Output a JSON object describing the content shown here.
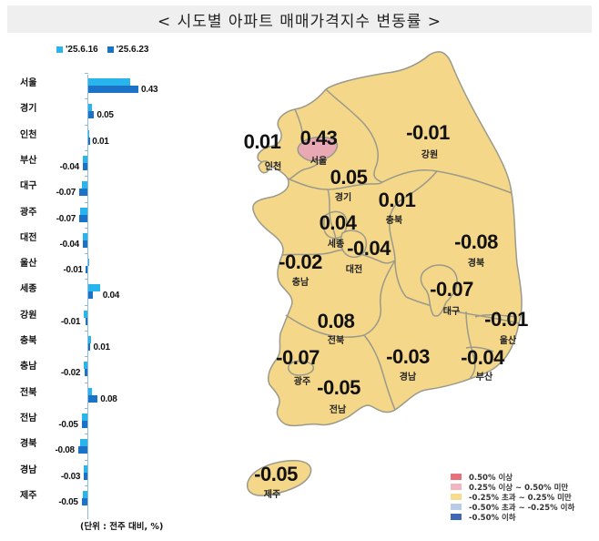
{
  "title": "< 시도별 아파트 매매가격지수 변동률 >",
  "bar_legend": [
    {
      "label": "'25.6.16",
      "color": "#28b4ec"
    },
    {
      "label": "'25.6.23",
      "color": "#1a73c6"
    }
  ],
  "unit_note": "(단위 : 전주 대비, %)",
  "regions": [
    {
      "name": "서울",
      "prev": 0.36,
      "curr": 0.43,
      "curr_label": "0.43"
    },
    {
      "name": "경기",
      "prev": 0.03,
      "curr": 0.05,
      "curr_label": "0.05"
    },
    {
      "name": "인천",
      "prev": 0.0,
      "curr": 0.01,
      "curr_label": "0.01"
    },
    {
      "name": "부산",
      "prev": -0.04,
      "curr": -0.04,
      "curr_label": "-0.04"
    },
    {
      "name": "대구",
      "prev": -0.05,
      "curr": -0.07,
      "curr_label": "-0.07"
    },
    {
      "name": "광주",
      "prev": -0.06,
      "curr": -0.07,
      "curr_label": "-0.07"
    },
    {
      "name": "대전",
      "prev": -0.04,
      "curr": -0.04,
      "curr_label": "-0.04"
    },
    {
      "name": "울산",
      "prev": 0.0,
      "curr": -0.01,
      "curr_label": "-0.01"
    },
    {
      "name": "세종",
      "prev": 0.1,
      "curr": 0.04,
      "curr_label": "0.04"
    },
    {
      "name": "강원",
      "prev": -0.03,
      "curr": -0.01,
      "curr_label": "-0.01"
    },
    {
      "name": "충북",
      "prev": 0.02,
      "curr": 0.01,
      "curr_label": "0.01"
    },
    {
      "name": "충남",
      "prev": -0.03,
      "curr": -0.02,
      "curr_label": "-0.02"
    },
    {
      "name": "전북",
      "prev": 0.03,
      "curr": 0.08,
      "curr_label": "0.08"
    },
    {
      "name": "전남",
      "prev": -0.05,
      "curr": -0.05,
      "curr_label": "-0.05"
    },
    {
      "name": "경북",
      "prev": -0.06,
      "curr": -0.08,
      "curr_label": "-0.08"
    },
    {
      "name": "경남",
      "prev": -0.03,
      "curr": -0.03,
      "curr_label": "-0.03"
    },
    {
      "name": "제주",
      "prev": -0.04,
      "curr": -0.05,
      "curr_label": "-0.05"
    }
  ],
  "map_labels": {
    "incheon": {
      "value": "0.01",
      "name": "인천"
    },
    "seoul": {
      "value": "0.43",
      "name": "서울"
    },
    "gangwon": {
      "value": "-0.01",
      "name": "강원"
    },
    "gyeonggi": {
      "value": "0.05",
      "name": "경기"
    },
    "chungbuk": {
      "value": "0.01",
      "name": "충북"
    },
    "sejong": {
      "value": "0.04",
      "name": "세종"
    },
    "daejeon": {
      "value": "-0.04",
      "name": "대전"
    },
    "chungnam": {
      "value": "-0.02",
      "name": "충남"
    },
    "gyeongbuk": {
      "value": "-0.08",
      "name": "경북"
    },
    "daegu": {
      "value": "-0.07",
      "name": "대구"
    },
    "ulsan": {
      "value": "-0.01",
      "name": "울산"
    },
    "jeonbuk": {
      "value": "0.08",
      "name": "전북"
    },
    "gwangju": {
      "value": "-0.07",
      "name": "광주"
    },
    "jeonnam": {
      "value": "-0.05",
      "name": "전남"
    },
    "gyeongnam": {
      "value": "-0.03",
      "name": "경남"
    },
    "busan": {
      "value": "-0.04",
      "name": "부산"
    },
    "jeju": {
      "value": "-0.05",
      "name": "제주"
    }
  },
  "map_legend": [
    {
      "label": "0.50% 이상",
      "color": "#e8707c"
    },
    {
      "label": "0.25% 이상 ~ 0.50% 미만",
      "color": "#f2b6c0"
    },
    {
      "label": "-0.25% 초과 ~ 0.25% 미만",
      "color": "#f7dc8e"
    },
    {
      "label": "-0.50% 초과 ~ -0.25% 이하",
      "color": "#b8cbe8"
    },
    {
      "label": "-0.50% 이하",
      "color": "#3f67b5"
    }
  ],
  "colors": {
    "land": "#f5d78a",
    "border": "#9a9a8a",
    "seoul_fill": "#e8a9b4"
  },
  "chart_data": {
    "type": "bar",
    "orientation": "horizontal",
    "title": "< 시도별 아파트 매매가격지수 변동률 >",
    "categories": [
      "서울",
      "경기",
      "인천",
      "부산",
      "대구",
      "광주",
      "대전",
      "울산",
      "세종",
      "강원",
      "충북",
      "충남",
      "전북",
      "전남",
      "경북",
      "경남",
      "제주"
    ],
    "series": [
      {
        "name": "'25.6.16",
        "values": [
          0.36,
          0.03,
          0.0,
          -0.04,
          -0.05,
          -0.06,
          -0.04,
          0.0,
          0.1,
          -0.03,
          0.02,
          -0.03,
          0.03,
          -0.05,
          -0.06,
          -0.03,
          -0.04
        ]
      },
      {
        "name": "'25.6.23",
        "values": [
          0.43,
          0.05,
          0.01,
          -0.04,
          -0.07,
          -0.07,
          -0.04,
          -0.01,
          0.04,
          -0.01,
          0.01,
          -0.02,
          0.08,
          -0.05,
          -0.08,
          -0.03,
          -0.05
        ]
      }
    ],
    "data_labels": "'25.6.23 values shown",
    "xlabel": "",
    "ylabel": "",
    "unit": "전주 대비, %",
    "legend_position": "top",
    "grid": false
  }
}
